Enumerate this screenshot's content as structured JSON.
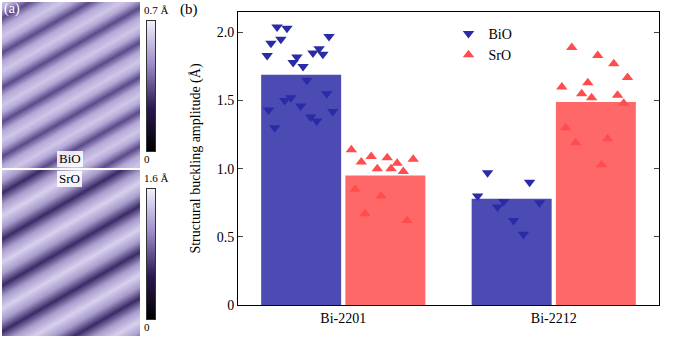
{
  "chart_data": [
    {
      "type": "image",
      "panel": "(a)",
      "images": [
        {
          "label": "BiO",
          "colorbar": {
            "range": [
              0,
              0.7
            ],
            "ticks": [
              0,
              {
                "value": 0.7,
                "label": "0.7 Å"
              }
            ]
          }
        },
        {
          "label": "SrO",
          "colorbar": {
            "range": [
              0,
              1.6
            ],
            "ticks": [
              0,
              {
                "value": 1.6,
                "label": "1.6 Å"
              }
            ]
          }
        }
      ]
    },
    {
      "type": "bar",
      "panel": "(b)",
      "categories": [
        "Bi-2201",
        "Bi-2212"
      ],
      "ylabel": "Structural buckling amplitude (Å)",
      "ylim": [
        0,
        2.15
      ],
      "yticks": [
        0,
        0.5,
        {
          "value": 1,
          "label": "1.0"
        },
        1.5,
        {
          "value": 2,
          "label": "2.0"
        }
      ],
      "legend": "top",
      "series": [
        {
          "name": "BiO",
          "color": "#2b2ba6",
          "marker": "triangle-down",
          "values": [
            1.69,
            0.78
          ],
          "points": [
            [
              1.83,
              1.78,
              1.88,
              2.04,
              1.75,
              1.97,
              2.03,
              1.85,
              1.92,
              1.82,
              1.84,
              1.95,
              1.65,
              1.42,
              1.52,
              1.35,
              1.3,
              1.46,
              1.55,
              1.5,
              1.38,
              1.43
            ],
            [
              0.8,
              0.76,
              0.9,
              0.97,
              0.62,
              0.75,
              0.72,
              0.52
            ]
          ]
        },
        {
          "name": "SrO",
          "color": "#ff4d4d",
          "marker": "triangle-up",
          "values": [
            0.95,
            1.49
          ],
          "points": [
            [
              1.14,
              1.0,
              0.98,
              1.05,
              1.08,
              1.07,
              1.09,
              1.04,
              0.85,
              0.8,
              0.62,
              0.67,
              1.0
            ],
            [
              1.6,
              1.63,
              1.77,
              1.89,
              1.83,
              1.48,
              1.55,
              1.22,
              1.3,
              1.52,
              1.54,
              1.19,
              1.03,
              1.67
            ]
          ]
        }
      ]
    }
  ]
}
